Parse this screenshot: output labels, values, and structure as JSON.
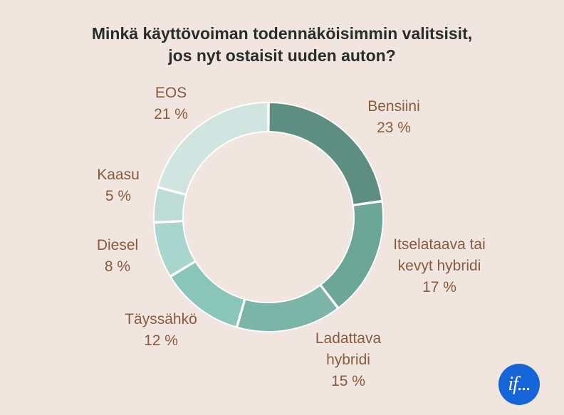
{
  "chart_data": {
    "type": "pie",
    "title_lines": [
      "Minkä käyttövoiman todennäköisimmin valitsisit,",
      "jos nyt ostaisit uuden auton?"
    ],
    "donut": true,
    "slices": [
      {
        "label_lines": [
          "Bensiini"
        ],
        "value": 23,
        "value_label": "23 %",
        "color": "#5e8e82"
      },
      {
        "label_lines": [
          "Itselataava tai",
          "kevyt hybridi"
        ],
        "value": 17,
        "value_label": "17 %",
        "color": "#6ca697"
      },
      {
        "label_lines": [
          "Ladattava",
          "hybridi"
        ],
        "value": 15,
        "value_label": "15 %",
        "color": "#7ab5a8"
      },
      {
        "label_lines": [
          "Täyssähkö"
        ],
        "value": 12,
        "value_label": "12 %",
        "color": "#89c6b9"
      },
      {
        "label_lines": [
          "Diesel"
        ],
        "value": 8,
        "value_label": "8 %",
        "color": "#a8d5cc"
      },
      {
        "label_lines": [
          "Kaasu"
        ],
        "value": 5,
        "value_label": "5 %",
        "color": "#bcdcd5"
      },
      {
        "label_lines": [
          "EOS"
        ],
        "value": 21,
        "value_label": "21 %",
        "color": "#d0e5e0"
      }
    ]
  },
  "logo": {
    "text": "if..."
  }
}
